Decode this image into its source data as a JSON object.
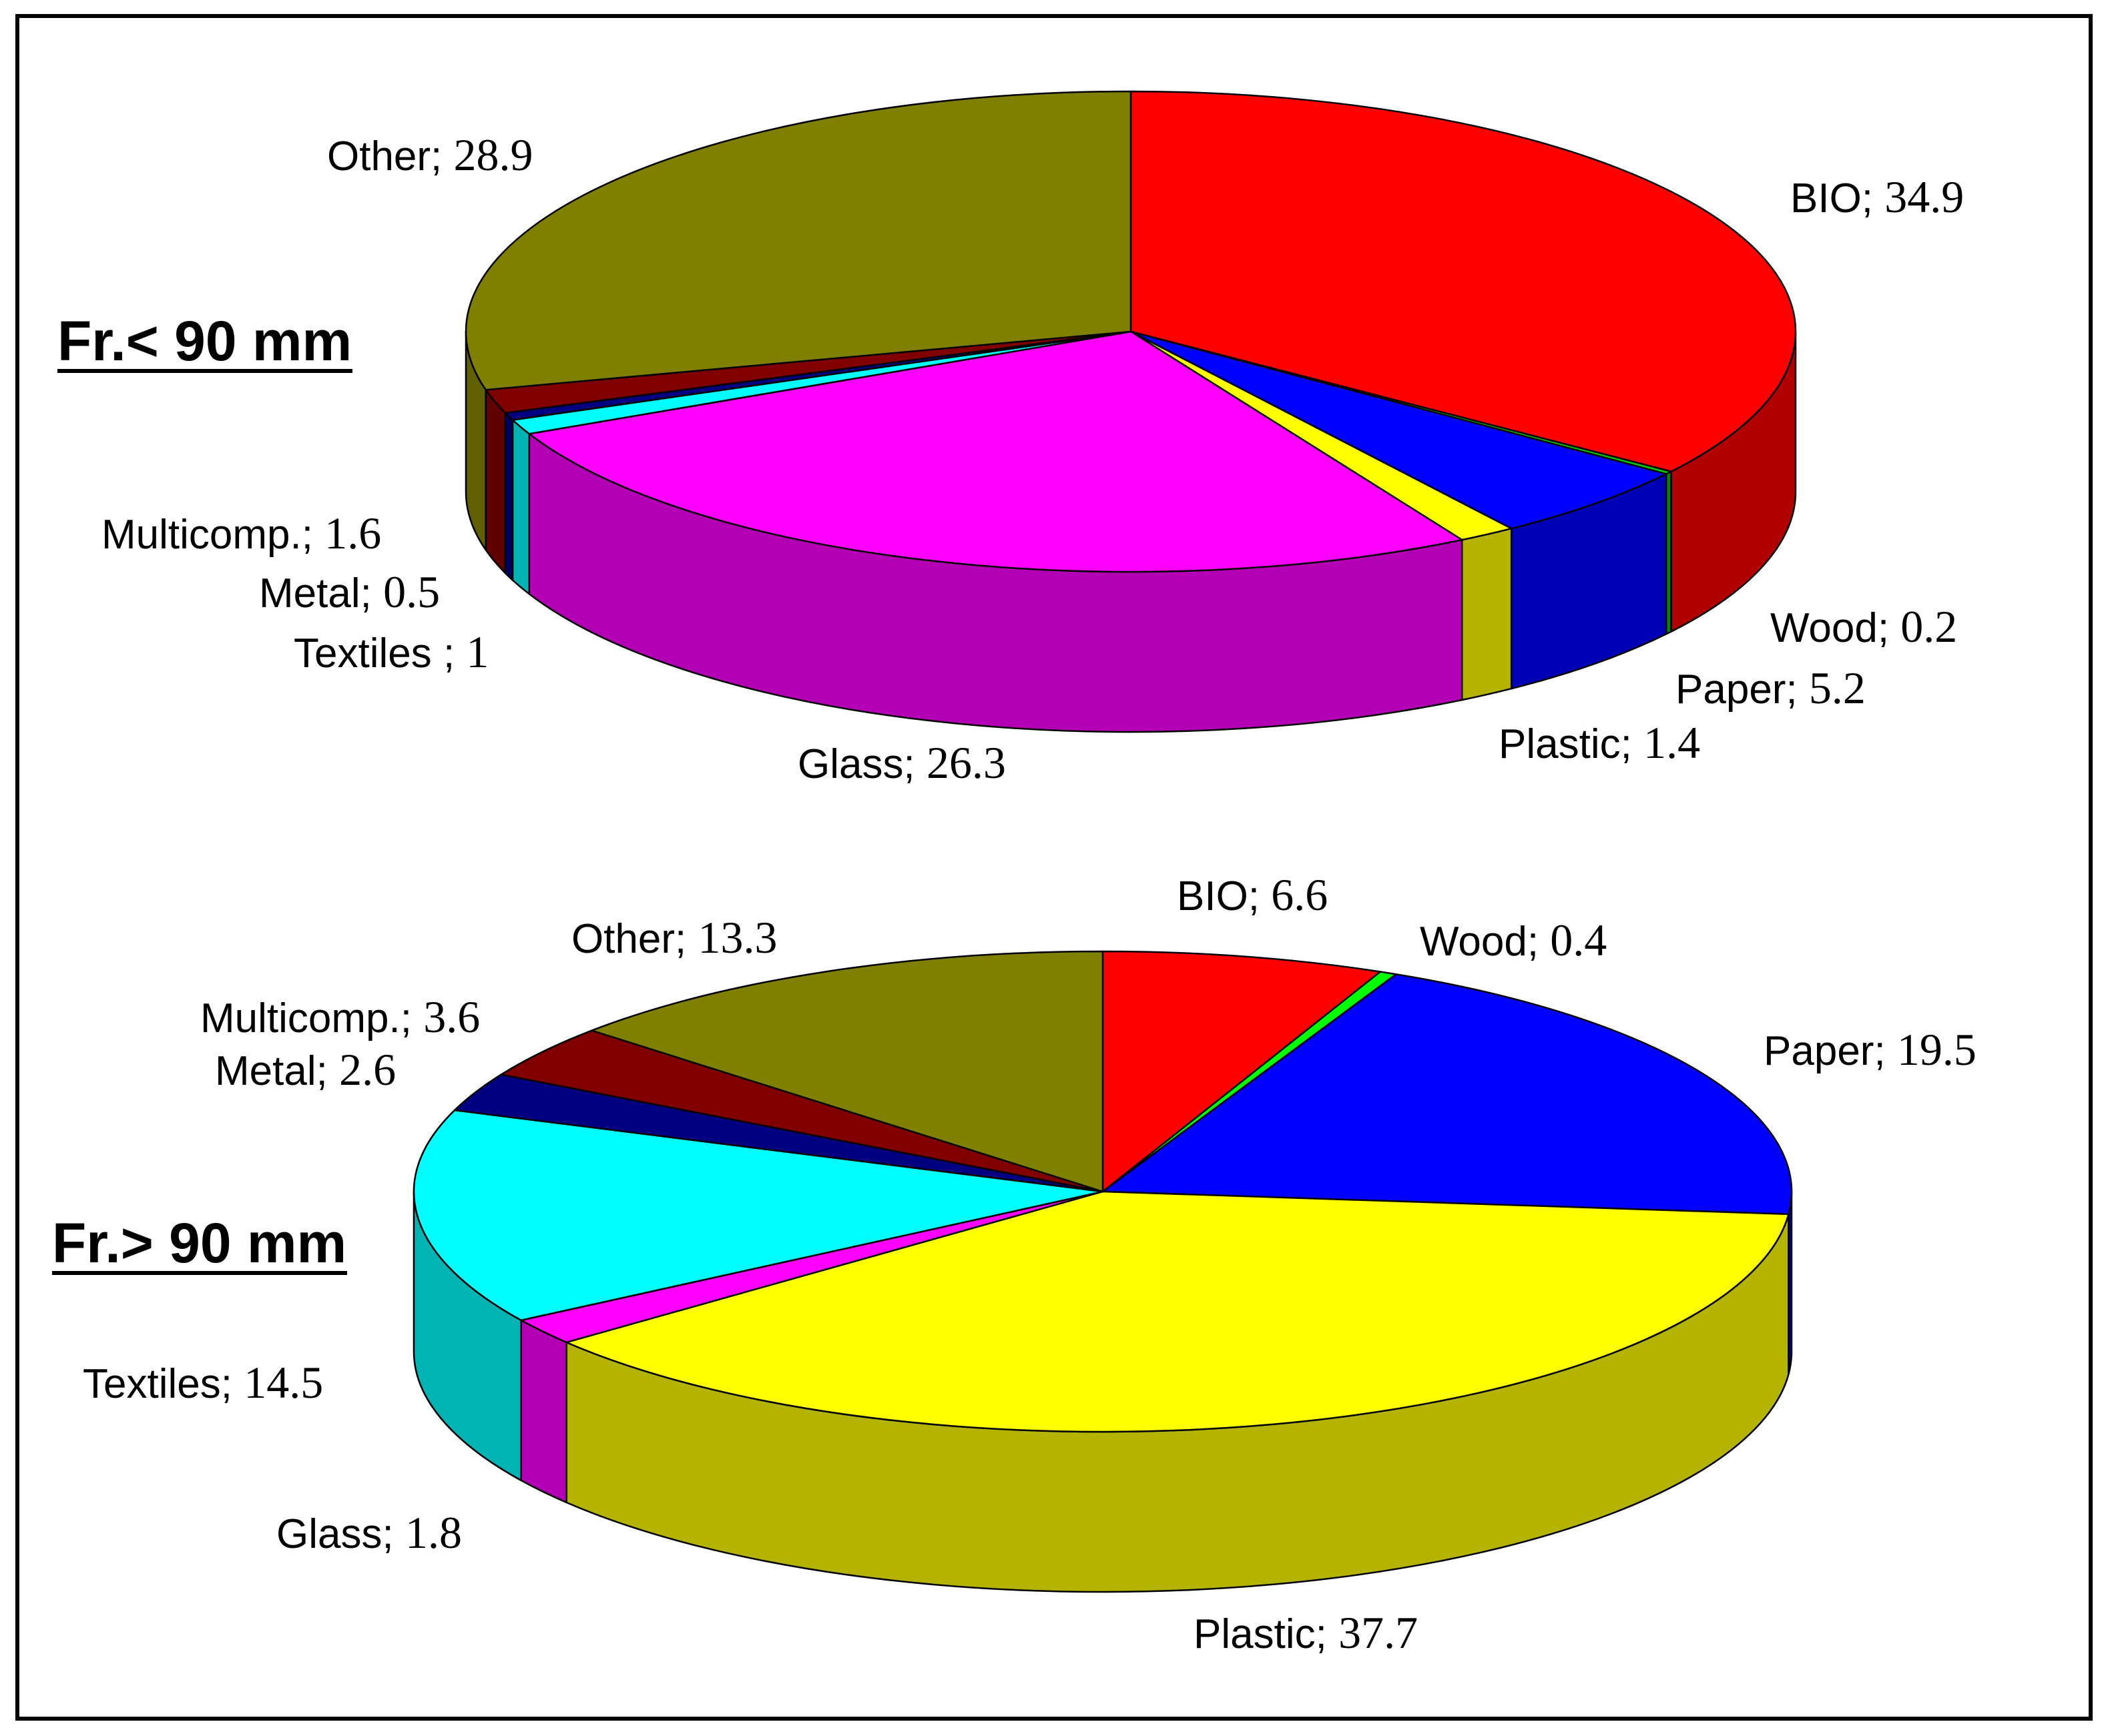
{
  "chart_data": [
    {
      "type": "pie",
      "title": "Fr.< 90 mm",
      "slices": [
        {
          "label": "BIO",
          "label_text": "BIO;",
          "value": 34.9,
          "value_text": "34.9",
          "top_color": "#ff0000",
          "side_color": "#b00000"
        },
        {
          "label": "Wood",
          "label_text": "Wood;",
          "value": 0.2,
          "value_text": "0.2",
          "top_color": "#00cc00",
          "side_color": "#008800"
        },
        {
          "label": "Paper",
          "label_text": "Paper;",
          "value": 5.2,
          "value_text": "5.2",
          "top_color": "#0000ff",
          "side_color": "#0000b4"
        },
        {
          "label": "Plastic",
          "label_text": "Plastic;",
          "value": 1.4,
          "value_text": "1.4",
          "top_color": "#ffff00",
          "side_color": "#b4b400"
        },
        {
          "label": "Glass",
          "label_text": "Glass;",
          "value": 26.3,
          "value_text": "26.3",
          "top_color": "#ff00ff",
          "side_color": "#b400b4"
        },
        {
          "label": "Textiles",
          "label_text": "Textiles ;",
          "value": 1,
          "value_text": "1",
          "top_color": "#00ffff",
          "side_color": "#00b4b4"
        },
        {
          "label": "Metal",
          "label_text": "Metal;",
          "value": 0.5,
          "value_text": "0.5",
          "top_color": "#000080",
          "side_color": "#000060"
        },
        {
          "label": "Multicomp.",
          "label_text": "Multicomp.;",
          "value": 1.6,
          "value_text": "1.6",
          "top_color": "#800000",
          "side_color": "#600000"
        },
        {
          "label": "Other",
          "label_text": "Other;",
          "value": 28.9,
          "value_text": "28.9",
          "top_color": "#808000",
          "side_color": "#606000"
        }
      ]
    },
    {
      "type": "pie",
      "title": "Fr.> 90 mm",
      "slices": [
        {
          "label": "BIO",
          "label_text": "BIO;",
          "value": 6.6,
          "value_text": "6.6",
          "top_color": "#ff0000",
          "side_color": "#b00000"
        },
        {
          "label": "Wood",
          "label_text": "Wood;",
          "value": 0.4,
          "value_text": "0.4",
          "top_color": "#00ff00",
          "side_color": "#00b400"
        },
        {
          "label": "Paper",
          "label_text": "Paper;",
          "value": 19.5,
          "value_text": "19.5",
          "top_color": "#0000ff",
          "side_color": "#0000b4"
        },
        {
          "label": "Plastic",
          "label_text": "Plastic;",
          "value": 37.7,
          "value_text": "37.7",
          "top_color": "#ffff00",
          "side_color": "#b4b400"
        },
        {
          "label": "Glass",
          "label_text": "Glass;",
          "value": 1.8,
          "value_text": "1.8",
          "top_color": "#ff00ff",
          "side_color": "#b400b4"
        },
        {
          "label": "Textiles",
          "label_text": "Textiles;",
          "value": 14.5,
          "value_text": "14.5",
          "top_color": "#00ffff",
          "side_color": "#00b4b4"
        },
        {
          "label": "Metal",
          "label_text": "Metal;",
          "value": 2.6,
          "value_text": "2.6",
          "top_color": "#000080",
          "side_color": "#000060"
        },
        {
          "label": "Multicomp.",
          "label_text": "Multicomp.;",
          "value": 3.6,
          "value_text": "3.6",
          "top_color": "#800000",
          "side_color": "#600000"
        },
        {
          "label": "Other",
          "label_text": "Other;",
          "value": 13.3,
          "value_text": "13.3",
          "top_color": "#808000",
          "side_color": "#606000"
        }
      ]
    }
  ]
}
